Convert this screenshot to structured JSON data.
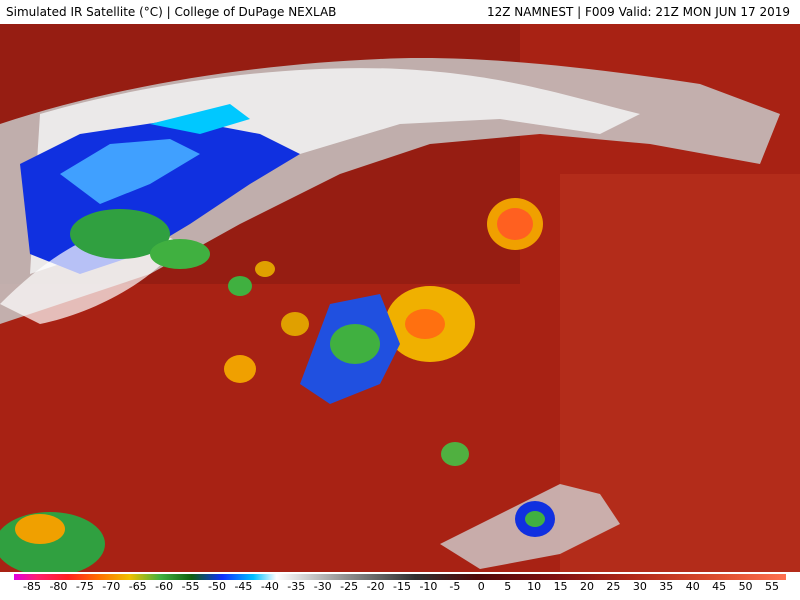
{
  "header": {
    "left": "Simulated IR Satellite (°C) | College of DuPage NEXLAB",
    "right": "12Z NAMNEST | F009 Valid: 21Z MON JUN 17 2019"
  },
  "colorbar": {
    "ticks": [
      -85,
      -80,
      -75,
      -70,
      -65,
      -60,
      -55,
      -50,
      -45,
      -40,
      -35,
      -30,
      -25,
      -20,
      -15,
      -10,
      -5,
      0,
      5,
      10,
      15,
      20,
      25,
      30,
      35,
      40,
      45,
      50,
      55
    ]
  }
}
